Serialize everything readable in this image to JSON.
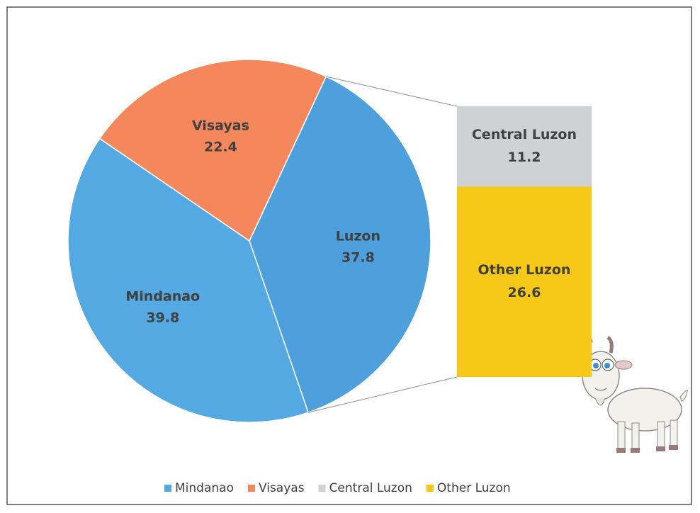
{
  "chart_data": {
    "type": "pie",
    "categories": [
      "Mindanao",
      "Visayas",
      "Luzon"
    ],
    "values": [
      39.8,
      22.4,
      37.8
    ],
    "colors": [
      "#55a9e2",
      "#f4875c",
      "#4ea0dd"
    ],
    "breakdown": {
      "categories": [
        "Central Luzon",
        "Other Luzon"
      ],
      "values": [
        11.2,
        26.6
      ],
      "colors": [
        "#cfd1d4",
        "#f6c919"
      ]
    },
    "legend": "bottom"
  }
}
